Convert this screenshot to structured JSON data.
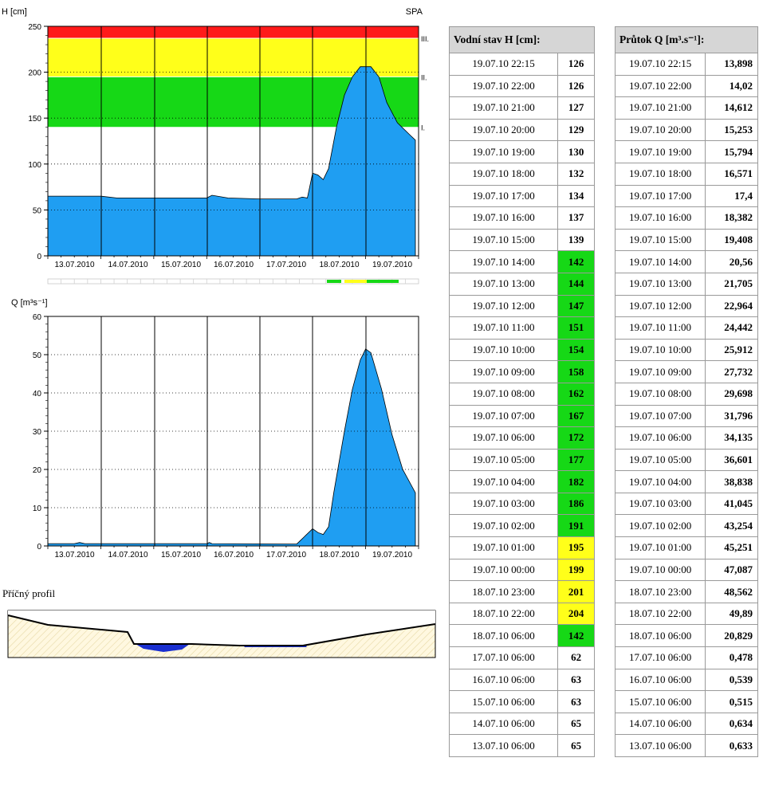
{
  "colors": {
    "fill": "#1f9ef2",
    "green": "#16d816",
    "yellow": "#ffff1a",
    "red": "#ff1a1a",
    "water": "#1a2fd0",
    "ground": "#fff8e0"
  },
  "h_chart": {
    "ylabel": "H [cm]",
    "corner_label": "SPA",
    "ylim": [
      0,
      250
    ],
    "yticks": [
      "0",
      "50",
      "100",
      "150",
      "200",
      "250"
    ],
    "xticks": [
      "13.07.2010",
      "14.07.2010",
      "15.07.2010",
      "16.07.2010",
      "17.07.2010",
      "18.07.2010",
      "19.07.2010"
    ],
    "spa_labels": [
      "I.",
      "II.",
      "III."
    ]
  },
  "q_chart": {
    "ylabel": "Q [m³s⁻¹]",
    "ylim": [
      0,
      60
    ],
    "yticks": [
      "0",
      "10",
      "20",
      "30",
      "40",
      "50",
      "60"
    ],
    "xticks": [
      "13.07.2010",
      "14.07.2010",
      "15.07.2010",
      "16.07.2010",
      "17.07.2010",
      "18.07.2010",
      "19.07.2010"
    ]
  },
  "chart_data": [
    {
      "type": "area",
      "ylabel": "H [cm]",
      "title": "SPA",
      "ylim": [
        0,
        250
      ],
      "x_unit": "days from 13.07.2010 00:00",
      "bands": [
        {
          "name": "I.",
          "from": 140,
          "to": 195,
          "color": "#16d816"
        },
        {
          "name": "II.",
          "from": 195,
          "to": 237,
          "color": "#ffff1a"
        },
        {
          "name": "III.",
          "from": 237,
          "to": 250,
          "color": "#ff1a1a"
        }
      ],
      "x": [
        0,
        1.0,
        1.3,
        2.0,
        3.0,
        3.1,
        3.4,
        4.0,
        4.7,
        4.8,
        4.9,
        5.0,
        5.1,
        5.2,
        5.3,
        5.45,
        5.6,
        5.75,
        5.9,
        6.1,
        6.25,
        6.4,
        6.6,
        6.83,
        6.94
      ],
      "y": [
        65,
        65,
        63,
        63,
        63,
        66,
        63,
        62,
        62,
        64,
        63,
        90,
        88,
        83,
        95,
        140,
        175,
        195,
        206,
        206,
        195,
        167,
        145,
        132,
        126
      ]
    },
    {
      "type": "area",
      "ylabel": "Q [m³s⁻¹]",
      "ylim": [
        0,
        60
      ],
      "x": [
        0,
        0.5,
        0.6,
        0.7,
        1.0,
        3.0,
        3.05,
        3.1,
        4.7,
        5.0,
        5.1,
        5.2,
        5.3,
        5.4,
        5.6,
        5.75,
        5.9,
        6.0,
        6.1,
        6.3,
        6.5,
        6.7,
        6.94
      ],
      "y": [
        0.6,
        0.6,
        0.9,
        0.6,
        0.6,
        0.6,
        0.9,
        0.6,
        0.5,
        4.5,
        3.5,
        3.0,
        5.0,
        14.0,
        30.0,
        41.0,
        48.6,
        51.5,
        50.5,
        41.0,
        29.0,
        20.0,
        13.9
      ]
    }
  ],
  "table_h": {
    "header": "Vodní stav H [cm]:",
    "rows": [
      {
        "dt": "19.07.10 22:15",
        "v": "126",
        "lvl": ""
      },
      {
        "dt": "19.07.10 22:00",
        "v": "126",
        "lvl": ""
      },
      {
        "dt": "19.07.10 21:00",
        "v": "127",
        "lvl": ""
      },
      {
        "dt": "19.07.10 20:00",
        "v": "129",
        "lvl": ""
      },
      {
        "dt": "19.07.10 19:00",
        "v": "130",
        "lvl": ""
      },
      {
        "dt": "19.07.10 18:00",
        "v": "132",
        "lvl": ""
      },
      {
        "dt": "19.07.10 17:00",
        "v": "134",
        "lvl": ""
      },
      {
        "dt": "19.07.10 16:00",
        "v": "137",
        "lvl": ""
      },
      {
        "dt": "19.07.10 15:00",
        "v": "139",
        "lvl": ""
      },
      {
        "dt": "19.07.10 14:00",
        "v": "142",
        "lvl": "green"
      },
      {
        "dt": "19.07.10 13:00",
        "v": "144",
        "lvl": "green"
      },
      {
        "dt": "19.07.10 12:00",
        "v": "147",
        "lvl": "green"
      },
      {
        "dt": "19.07.10 11:00",
        "v": "151",
        "lvl": "green"
      },
      {
        "dt": "19.07.10 10:00",
        "v": "154",
        "lvl": "green"
      },
      {
        "dt": "19.07.10 09:00",
        "v": "158",
        "lvl": "green"
      },
      {
        "dt": "19.07.10 08:00",
        "v": "162",
        "lvl": "green"
      },
      {
        "dt": "19.07.10 07:00",
        "v": "167",
        "lvl": "green"
      },
      {
        "dt": "19.07.10 06:00",
        "v": "172",
        "lvl": "green"
      },
      {
        "dt": "19.07.10 05:00",
        "v": "177",
        "lvl": "green"
      },
      {
        "dt": "19.07.10 04:00",
        "v": "182",
        "lvl": "green"
      },
      {
        "dt": "19.07.10 03:00",
        "v": "186",
        "lvl": "green"
      },
      {
        "dt": "19.07.10 02:00",
        "v": "191",
        "lvl": "green"
      },
      {
        "dt": "19.07.10 01:00",
        "v": "195",
        "lvl": "yellow"
      },
      {
        "dt": "19.07.10 00:00",
        "v": "199",
        "lvl": "yellow"
      },
      {
        "dt": "18.07.10 23:00",
        "v": "201",
        "lvl": "yellow"
      },
      {
        "dt": "18.07.10 22:00",
        "v": "204",
        "lvl": "yellow"
      },
      {
        "dt": "18.07.10 06:00",
        "v": "142",
        "lvl": "green"
      },
      {
        "dt": "17.07.10 06:00",
        "v": "62",
        "lvl": ""
      },
      {
        "dt": "16.07.10 06:00",
        "v": "63",
        "lvl": ""
      },
      {
        "dt": "15.07.10 06:00",
        "v": "63",
        "lvl": ""
      },
      {
        "dt": "14.07.10 06:00",
        "v": "65",
        "lvl": ""
      },
      {
        "dt": "13.07.10 06:00",
        "v": "65",
        "lvl": ""
      }
    ]
  },
  "table_q": {
    "header": "Průtok Q [m³.s⁻¹]:",
    "rows": [
      {
        "dt": "19.07.10 22:15",
        "v": "13,898"
      },
      {
        "dt": "19.07.10 22:00",
        "v": "14,02"
      },
      {
        "dt": "19.07.10 21:00",
        "v": "14,612"
      },
      {
        "dt": "19.07.10 20:00",
        "v": "15,253"
      },
      {
        "dt": "19.07.10 19:00",
        "v": "15,794"
      },
      {
        "dt": "19.07.10 18:00",
        "v": "16,571"
      },
      {
        "dt": "19.07.10 17:00",
        "v": "17,4"
      },
      {
        "dt": "19.07.10 16:00",
        "v": "18,382"
      },
      {
        "dt": "19.07.10 15:00",
        "v": "19,408"
      },
      {
        "dt": "19.07.10 14:00",
        "v": "20,56"
      },
      {
        "dt": "19.07.10 13:00",
        "v": "21,705"
      },
      {
        "dt": "19.07.10 12:00",
        "v": "22,964"
      },
      {
        "dt": "19.07.10 11:00",
        "v": "24,442"
      },
      {
        "dt": "19.07.10 10:00",
        "v": "25,912"
      },
      {
        "dt": "19.07.10 09:00",
        "v": "27,732"
      },
      {
        "dt": "19.07.10 08:00",
        "v": "29,698"
      },
      {
        "dt": "19.07.10 07:00",
        "v": "31,796"
      },
      {
        "dt": "19.07.10 06:00",
        "v": "34,135"
      },
      {
        "dt": "19.07.10 05:00",
        "v": "36,601"
      },
      {
        "dt": "19.07.10 04:00",
        "v": "38,838"
      },
      {
        "dt": "19.07.10 03:00",
        "v": "41,045"
      },
      {
        "dt": "19.07.10 02:00",
        "v": "43,254"
      },
      {
        "dt": "19.07.10 01:00",
        "v": "45,251"
      },
      {
        "dt": "19.07.10 00:00",
        "v": "47,087"
      },
      {
        "dt": "18.07.10 23:00",
        "v": "48,562"
      },
      {
        "dt": "18.07.10 22:00",
        "v": "49,89"
      },
      {
        "dt": "18.07.10 06:00",
        "v": "20,829"
      },
      {
        "dt": "17.07.10 06:00",
        "v": "0,478"
      },
      {
        "dt": "16.07.10 06:00",
        "v": "0,539"
      },
      {
        "dt": "15.07.10 06:00",
        "v": "0,515"
      },
      {
        "dt": "14.07.10 06:00",
        "v": "0,634"
      },
      {
        "dt": "13.07.10 06:00",
        "v": "0,633"
      }
    ]
  },
  "profile": {
    "title": "Příčný profil"
  }
}
